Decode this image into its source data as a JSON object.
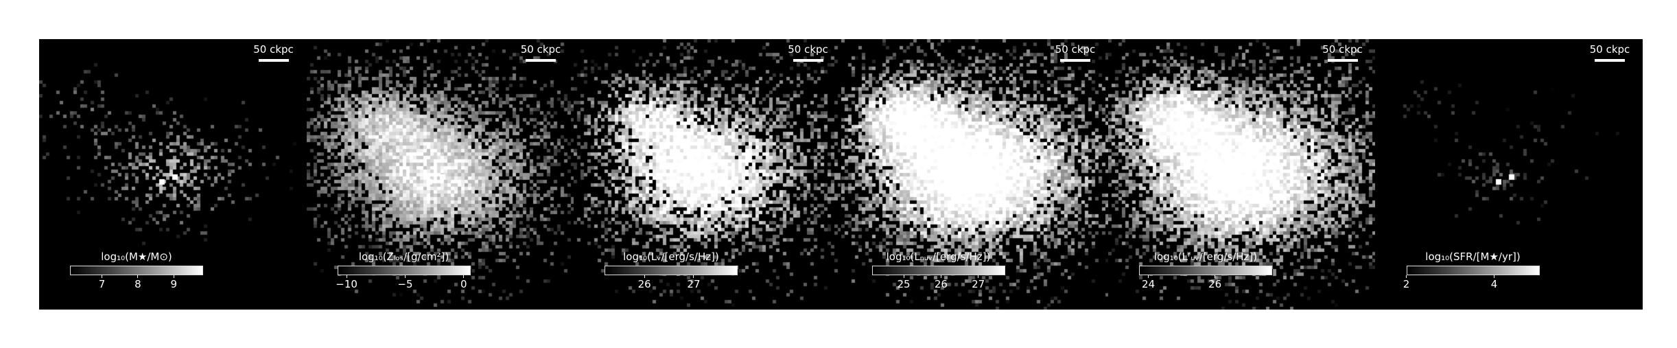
{
  "scale_bar_label": "50 ckpc",
  "panels": [
    {
      "cbar_label": "log₁₀(M★/M⊙)",
      "ticks": [
        "7",
        "8",
        "9"
      ],
      "tick_frac": [
        0.24,
        0.51,
        0.78
      ],
      "clusters": [
        [
          0.18,
          0.27,
          50,
          0.35
        ],
        [
          0.47,
          0.5,
          60,
          0.9
        ],
        [
          0.62,
          0.42,
          70,
          0.25
        ]
      ],
      "density": 0.35,
      "brightness": 0.55
    },
    {
      "cbar_label": "log₁₀(Zₗₒₛ/[g/cm²])",
      "ticks": [
        "−10",
        "−5",
        "0"
      ],
      "tick_frac": [
        0.07,
        0.51,
        0.95
      ],
      "clusters": [
        [
          0.24,
          0.28,
          60,
          0.7
        ],
        [
          0.45,
          0.52,
          90,
          1.0
        ],
        [
          0.62,
          0.42,
          130,
          0.45
        ]
      ],
      "density": 0.8,
      "brightness": 0.6
    },
    {
      "cbar_label": "log₁₀(Lᵥ/[erg/s/Hz])",
      "ticks": [
        "26",
        "27"
      ],
      "tick_frac": [
        0.3,
        0.67
      ],
      "clusters": [
        [
          0.24,
          0.27,
          55,
          0.7
        ],
        [
          0.44,
          0.52,
          90,
          1.0
        ],
        [
          0.62,
          0.42,
          130,
          0.55
        ]
      ],
      "density": 0.7,
      "brightness": 0.7
    },
    {
      "cbar_label": "log₁₀(Lₙᵤᵥ/[erg/s/Hz])",
      "ticks": [
        "25",
        "26",
        "27"
      ],
      "tick_frac": [
        0.24,
        0.52,
        0.8
      ],
      "clusters": [
        [
          0.22,
          0.27,
          55,
          0.8
        ],
        [
          0.44,
          0.52,
          100,
          1.0
        ],
        [
          0.62,
          0.42,
          140,
          0.6
        ]
      ],
      "density": 0.85,
      "brightness": 0.75
    },
    {
      "cbar_label": "log₁₀(Lᶠᵤᵥ/[erg/s/Hz])",
      "ticks": [
        "24",
        "26"
      ],
      "tick_frac": [
        0.07,
        0.57
      ],
      "clusters": [
        [
          0.22,
          0.27,
          55,
          0.8
        ],
        [
          0.44,
          0.52,
          100,
          1.0
        ],
        [
          0.62,
          0.42,
          140,
          0.6
        ]
      ],
      "density": 0.85,
      "brightness": 0.72
    },
    {
      "cbar_label": "log₁₀(SFR/[M★/yr])",
      "ticks": [
        "2",
        "4"
      ],
      "tick_frac": [
        0.0,
        0.66
      ],
      "clusters": [
        [
          0.22,
          0.27,
          35,
          0.3
        ],
        [
          0.44,
          0.52,
          45,
          0.7
        ],
        [
          0.65,
          0.36,
          70,
          0.12
        ]
      ],
      "density": 0.25,
      "brightness": 0.35
    }
  ]
}
